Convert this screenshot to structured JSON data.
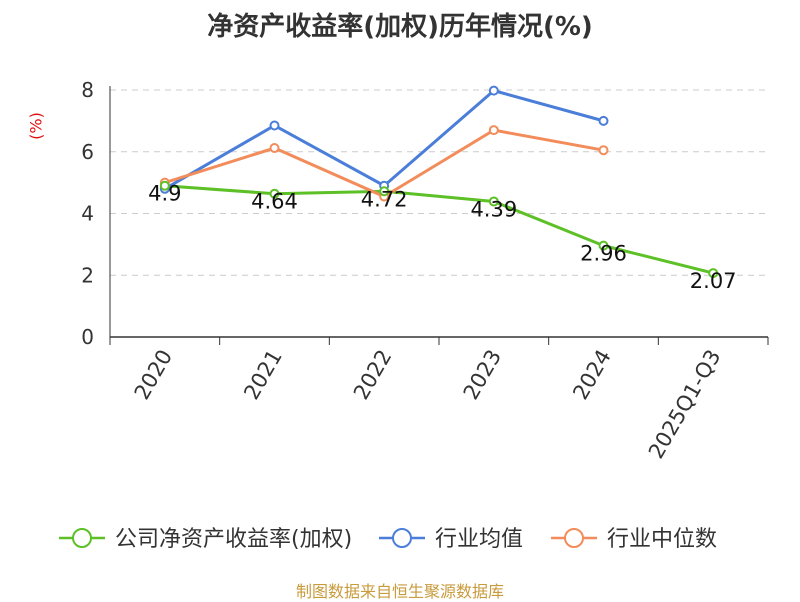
{
  "chart_data": {
    "type": "line",
    "title": "净资产收益率(加权)历年情况(%)",
    "ylabel": "(%)",
    "xlabel": "",
    "categories": [
      "2020",
      "2021",
      "2022",
      "2023",
      "2024",
      "2025Q1-Q3"
    ],
    "ylim": [
      0,
      8
    ],
    "yticks": [
      0,
      2,
      4,
      6,
      8
    ],
    "grid": true,
    "legend_position": "bottom",
    "series": [
      {
        "name": "公司净资产收益率(加权)",
        "color": "#5cc026",
        "values": [
          4.9,
          4.64,
          4.72,
          4.39,
          2.96,
          2.07
        ],
        "labels": [
          "4.9",
          "4.64",
          "4.72",
          "4.39",
          "2.96",
          "2.07"
        ]
      },
      {
        "name": "行业均值",
        "color": "#4a7ed8",
        "values": [
          4.8,
          6.85,
          4.9,
          7.98,
          7.0,
          null
        ]
      },
      {
        "name": "行业中位数",
        "color": "#f28c5a",
        "values": [
          5.0,
          6.12,
          4.55,
          6.7,
          6.05,
          null
        ]
      }
    ]
  },
  "footer": "制图数据来自恒生聚源数据库"
}
